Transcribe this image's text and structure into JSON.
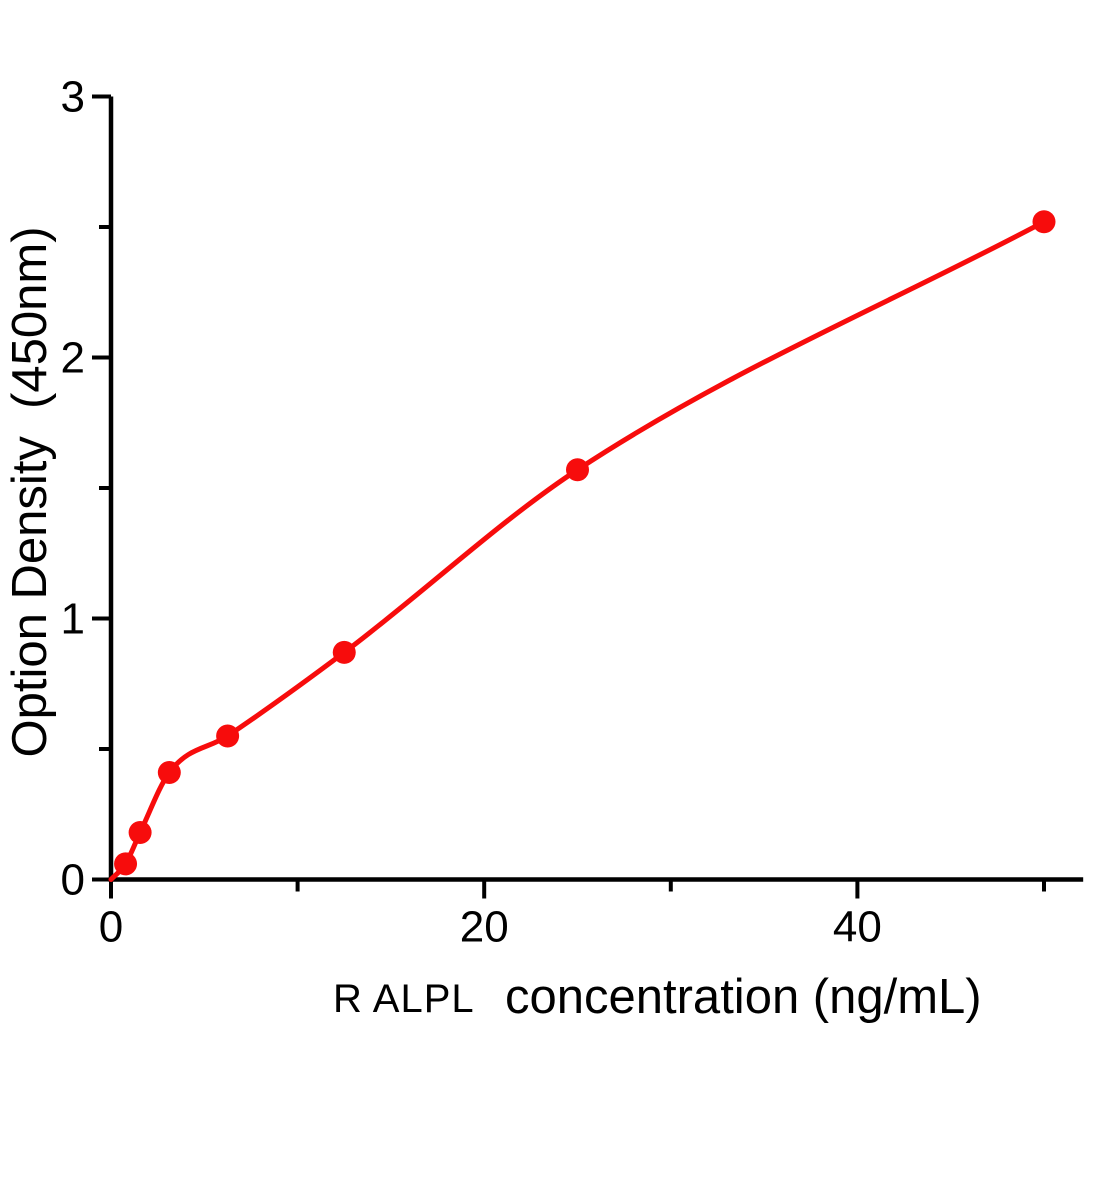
{
  "chart_data": {
    "type": "scatter",
    "subtype": "standard-curve-with-fitted-line",
    "title": "",
    "ylabel": "Option Density  (450nm)",
    "xlabel_prefix": "R ALPL",
    "xlabel_main": "concentration (ng/mL)",
    "points": [
      {
        "x": 0.78,
        "y": 0.06
      },
      {
        "x": 1.56,
        "y": 0.18
      },
      {
        "x": 3.125,
        "y": 0.41
      },
      {
        "x": 6.25,
        "y": 0.55
      },
      {
        "x": 12.5,
        "y": 0.87
      },
      {
        "x": 25,
        "y": 1.57
      },
      {
        "x": 50,
        "y": 2.52
      }
    ],
    "curve_start": {
      "x": 0,
      "y": 0
    },
    "x_axis": {
      "range": [
        0,
        52.1
      ],
      "major_ticks": [
        0,
        20,
        40
      ],
      "major_tick_labels": [
        "0",
        "20",
        "40"
      ],
      "minor_ticks": [
        10,
        30,
        50
      ]
    },
    "y_axis": {
      "range": [
        0,
        3
      ],
      "major_ticks": [
        0,
        1,
        2,
        3
      ],
      "major_tick_labels": [
        "0",
        "1",
        "2",
        "3"
      ],
      "minor_ticks": [
        0.5,
        1.5,
        2.5
      ]
    },
    "colors": {
      "series": "#f70c0c",
      "axis": "#000000",
      "background": "#ffffff"
    }
  }
}
